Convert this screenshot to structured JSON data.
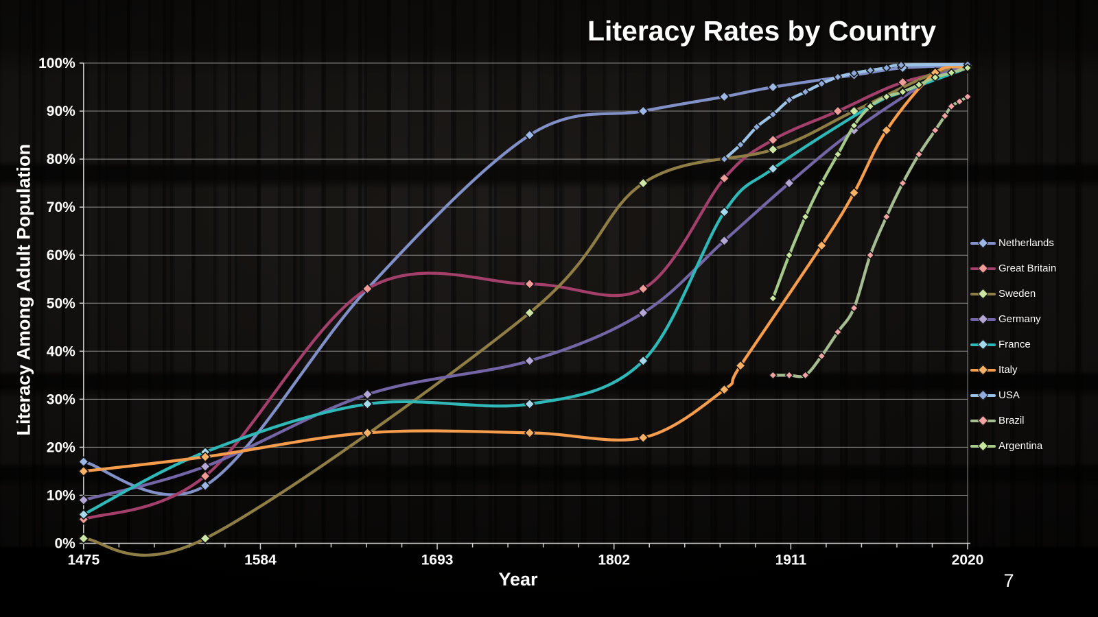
{
  "title": "Literacy Rates by Country",
  "page_number": "7",
  "chart_data": {
    "type": "line",
    "title": "Literacy Rates by Country",
    "xlabel": "Year",
    "ylabel": "Literacy Among Adult Population",
    "xlim": [
      1475,
      2020
    ],
    "ylim": [
      0,
      100
    ],
    "x_tick_labels": [
      "1475",
      "1584",
      "1693",
      "1802",
      "1911",
      "2020"
    ],
    "x_tick_values": [
      1475,
      1584,
      1693,
      1802,
      1911,
      2020
    ],
    "x_minor_tick_step": 21.8,
    "y_tick_labels": [
      "0%",
      "10%",
      "20%",
      "30%",
      "40%",
      "50%",
      "60%",
      "70%",
      "80%",
      "90%",
      "100%"
    ],
    "y_tick_values": [
      0,
      10,
      20,
      30,
      40,
      50,
      60,
      70,
      80,
      90,
      100
    ],
    "grid": "horizontal",
    "gridline_color": "#b9b9b9",
    "axis_color": "#d0d0d0",
    "legend_position": "right",
    "series": [
      {
        "name": "Netherlands",
        "line_color": "#8191c8",
        "marker_color": "#9db7e6",
        "marker": "diamond",
        "marker_half": 7,
        "points": [
          [
            1475,
            17
          ],
          [
            1550,
            12
          ],
          [
            1650,
            53
          ],
          [
            1750,
            85
          ],
          [
            1820,
            90
          ],
          [
            1870,
            93
          ],
          [
            1900,
            95
          ],
          [
            1950,
            97.5
          ],
          [
            1980,
            99
          ],
          [
            2020,
            99.5
          ]
        ]
      },
      {
        "name": "Great Britain",
        "line_color": "#a23f6b",
        "marker_color": "#f19c99",
        "marker": "diamond",
        "marker_half": 7,
        "points": [
          [
            1475,
            5
          ],
          [
            1550,
            14
          ],
          [
            1650,
            53
          ],
          [
            1750,
            54
          ],
          [
            1820,
            53
          ],
          [
            1870,
            76
          ],
          [
            1900,
            84
          ],
          [
            1940,
            90
          ],
          [
            1980,
            96
          ],
          [
            2020,
            99
          ]
        ]
      },
      {
        "name": "Sweden",
        "line_color": "#8f7d46",
        "marker_color": "#cde6a5",
        "marker": "diamond",
        "marker_half": 7,
        "points": [
          [
            1475,
            1
          ],
          [
            1550,
            1
          ],
          [
            1750,
            48
          ],
          [
            1820,
            75
          ],
          [
            1900,
            82
          ],
          [
            1950,
            90
          ],
          [
            2000,
            98
          ],
          [
            2020,
            99
          ]
        ]
      },
      {
        "name": "Germany",
        "line_color": "#7466a6",
        "marker_color": "#b4a7d6",
        "marker": "diamond",
        "marker_half": 7,
        "points": [
          [
            1475,
            9
          ],
          [
            1550,
            16
          ],
          [
            1650,
            31
          ],
          [
            1750,
            38
          ],
          [
            1820,
            48
          ],
          [
            1870,
            63
          ],
          [
            1910,
            75
          ],
          [
            1950,
            86
          ],
          [
            2000,
            97
          ],
          [
            2020,
            99
          ]
        ]
      },
      {
        "name": "France",
        "line_color": "#2fb8b8",
        "marker_color": "#a6d9ec",
        "marker": "diamond",
        "marker_half": 7,
        "points": [
          [
            1475,
            6
          ],
          [
            1550,
            19
          ],
          [
            1650,
            29
          ],
          [
            1750,
            29
          ],
          [
            1820,
            38
          ],
          [
            1870,
            69
          ],
          [
            1900,
            78
          ],
          [
            1960,
            91
          ],
          [
            1980,
            94
          ],
          [
            2020,
            99
          ]
        ]
      },
      {
        "name": "Italy",
        "line_color": "#f69d4d",
        "marker_color": "#f9b166",
        "marker": "diamond",
        "marker_half": 7,
        "points": [
          [
            1475,
            15
          ],
          [
            1550,
            18
          ],
          [
            1650,
            23
          ],
          [
            1750,
            23
          ],
          [
            1820,
            22
          ],
          [
            1870,
            32
          ],
          [
            1880,
            37
          ],
          [
            1930,
            62
          ],
          [
            1950,
            73
          ],
          [
            1970,
            86
          ],
          [
            2000,
            98
          ],
          [
            2020,
            99
          ]
        ]
      },
      {
        "name": "USA",
        "line_color": "#9cc2e5",
        "marker_color": "#8faadc",
        "marker": "diamond",
        "marker_half": 5.5,
        "points": [
          [
            1870,
            80
          ],
          [
            1880,
            83
          ],
          [
            1890,
            86.7
          ],
          [
            1900,
            89.3
          ],
          [
            1910,
            92.3
          ],
          [
            1920,
            94
          ],
          [
            1930,
            95.7
          ],
          [
            1940,
            97.1
          ],
          [
            1950,
            97.9
          ],
          [
            1960,
            98.5
          ],
          [
            1970,
            99
          ],
          [
            1979,
            99.6
          ],
          [
            2020,
            99.7
          ]
        ]
      },
      {
        "name": "Brazil",
        "line_color": "#a6bd92",
        "marker_color": "#f2a3a3",
        "marker": "diamond",
        "marker_half": 5.5,
        "points": [
          [
            1900,
            35
          ],
          [
            1910,
            35
          ],
          [
            1920,
            35
          ],
          [
            1930,
            39
          ],
          [
            1940,
            44
          ],
          [
            1950,
            49
          ],
          [
            1960,
            60
          ],
          [
            1970,
            68
          ],
          [
            1980,
            75
          ],
          [
            1990,
            81
          ],
          [
            2000,
            86
          ],
          [
            2006,
            89
          ],
          [
            2010,
            91
          ],
          [
            2015,
            92
          ],
          [
            2020,
            93
          ]
        ]
      },
      {
        "name": "Argentina",
        "line_color": "#a5c98b",
        "marker_color": "#c9e69f",
        "marker": "diamond",
        "marker_half": 5.5,
        "points": [
          [
            1900,
            51
          ],
          [
            1910,
            60
          ],
          [
            1920,
            68
          ],
          [
            1930,
            75
          ],
          [
            1940,
            81
          ],
          [
            1950,
            87
          ],
          [
            1960,
            91
          ],
          [
            1970,
            93
          ],
          [
            1980,
            94
          ],
          [
            1990,
            95.5
          ],
          [
            2000,
            97
          ],
          [
            2010,
            98
          ],
          [
            2020,
            99
          ]
        ]
      }
    ]
  }
}
